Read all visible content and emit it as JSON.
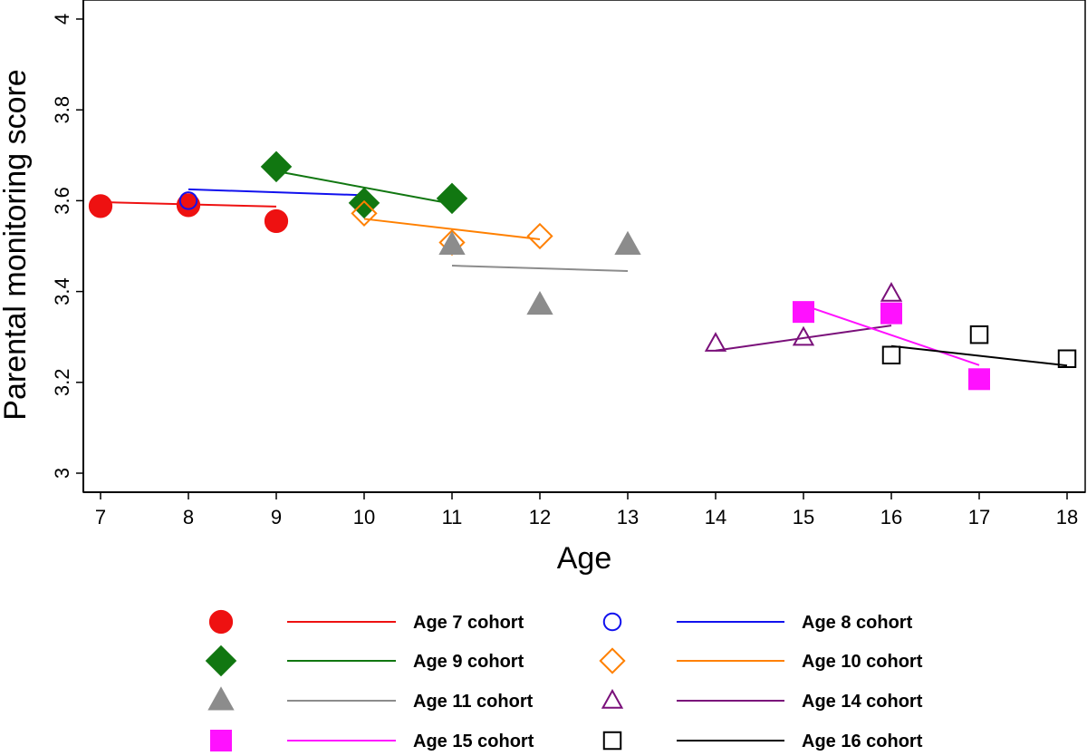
{
  "chart_data": {
    "type": "scatter",
    "title": "",
    "xlabel": "Age",
    "ylabel": "Parental monitoring score",
    "xlim": [
      7,
      18
    ],
    "ylim": [
      3,
      4
    ],
    "xticks": [
      7,
      8,
      9,
      10,
      11,
      12,
      13,
      14,
      15,
      16,
      17,
      18
    ],
    "yticks": [
      3,
      3.2,
      3.4,
      3.6,
      3.8,
      4
    ],
    "ytick_labels": [
      "3",
      "3.2",
      "3.4",
      "3.6",
      "3.8",
      "4"
    ],
    "legend_position": "bottom",
    "series": [
      {
        "name": "Age 7 cohort",
        "color": "#ee1111",
        "marker": "circle",
        "filled": true,
        "points": [
          [
            7,
            3.588
          ],
          [
            8,
            3.59
          ],
          [
            9,
            3.555
          ]
        ],
        "fit": [
          [
            7,
            3.597
          ],
          [
            9,
            3.587
          ]
        ]
      },
      {
        "name": "Age 8 cohort",
        "color": "#1111ee",
        "marker": "circle",
        "filled": false,
        "points": [
          [
            8,
            3.6
          ],
          [
            9,
            3.672
          ],
          [
            10,
            3.598
          ]
        ],
        "fit": [
          [
            8,
            3.625
          ],
          [
            10,
            3.612
          ]
        ]
      },
      {
        "name": "Age 9 cohort",
        "color": "#117711",
        "marker": "diamond",
        "filled": true,
        "points": [
          [
            9,
            3.675
          ],
          [
            10,
            3.595
          ],
          [
            11,
            3.605
          ]
        ],
        "fit": [
          [
            9,
            3.665
          ],
          [
            11,
            3.593
          ]
        ]
      },
      {
        "name": "Age 10 cohort",
        "color": "#ff8000",
        "marker": "diamond",
        "filled": false,
        "points": [
          [
            10,
            3.572
          ],
          [
            11,
            3.508
          ],
          [
            12,
            3.522
          ]
        ],
        "fit": [
          [
            10,
            3.56
          ],
          [
            12,
            3.515
          ]
        ]
      },
      {
        "name": "Age 11 cohort",
        "color": "#8c8c8c",
        "marker": "triangle",
        "filled": true,
        "points": [
          [
            11,
            3.502
          ],
          [
            12,
            3.37
          ],
          [
            13,
            3.502
          ]
        ],
        "fit": [
          [
            11,
            3.457
          ],
          [
            13,
            3.445
          ]
        ]
      },
      {
        "name": "Age 14 cohort",
        "color": "#7a107a",
        "marker": "triangle",
        "filled": false,
        "points": [
          [
            14,
            3.285
          ],
          [
            15,
            3.298
          ],
          [
            16,
            3.395
          ]
        ],
        "fit": [
          [
            14,
            3.27
          ],
          [
            16,
            3.325
          ]
        ]
      },
      {
        "name": "Age 15 cohort",
        "color": "#ff11ff",
        "marker": "square",
        "filled": true,
        "points": [
          [
            15,
            3.355
          ],
          [
            16,
            3.352
          ],
          [
            17,
            3.207
          ]
        ],
        "fit": [
          [
            15,
            3.37
          ],
          [
            17,
            3.238
          ]
        ]
      },
      {
        "name": "Age 16 cohort",
        "color": "#000000",
        "marker": "square",
        "filled": false,
        "points": [
          [
            16,
            3.26
          ],
          [
            17,
            3.305
          ],
          [
            18,
            3.252
          ]
        ],
        "fit": [
          [
            16,
            3.28
          ],
          [
            18,
            3.237
          ]
        ]
      }
    ]
  }
}
